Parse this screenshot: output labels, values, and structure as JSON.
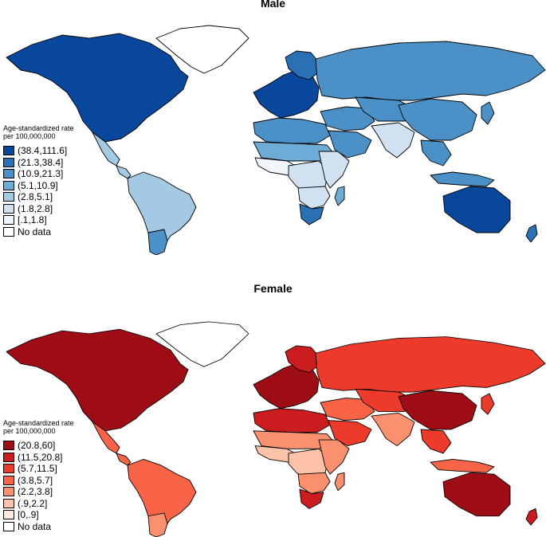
{
  "maps": [
    {
      "title": "Male",
      "legend_title": [
        "Age-standardized rate",
        "per 100,000,000"
      ],
      "colors": {
        "c1": "#08479c",
        "c2": "#2a70b4",
        "c3": "#4b91c7",
        "c4": "#6eacd6",
        "c5": "#a3c9e3",
        "c6": "#d0e1f2",
        "c7": "#f0f5fc",
        "nodata": "#ffffff"
      },
      "legend": [
        {
          "label": "(38.4,111.6]",
          "color": "#08479c"
        },
        {
          "label": "(21.3,38.4]",
          "color": "#2a70b4"
        },
        {
          "label": "(10.9,21.3]",
          "color": "#4b91c7"
        },
        {
          "label": "(5.1,10.9]",
          "color": "#6eacd6"
        },
        {
          "label": "(2.8,5.1]",
          "color": "#a3c9e3"
        },
        {
          "label": "(1.8,2.8]",
          "color": "#d0e1f2"
        },
        {
          "label": "[.1,1.8]",
          "color": "#f0f5fc"
        },
        {
          "label": "No data",
          "color": "#ffffff"
        }
      ]
    },
    {
      "title": "Female",
      "legend_title": [
        "Age-standardized rate",
        "per 100,000,000"
      ],
      "colors": {
        "c1": "#9e0d15",
        "c2": "#cb1d1f",
        "c3": "#ed3b2b",
        "c4": "#f76448",
        "c5": "#fb906e",
        "c6": "#fdc3a8",
        "c7": "#fde9df",
        "nodata": "#ffffff"
      },
      "legend": [
        {
          "label": "(20.8,60]",
          "color": "#9e0d15"
        },
        {
          "label": "(11.5,20.8]",
          "color": "#cb1d1f"
        },
        {
          "label": "(5.7,11.5]",
          "color": "#ed3b2b"
        },
        {
          "label": "(3.8,5.7]",
          "color": "#f76448"
        },
        {
          "label": "(2.2,3.8]",
          "color": "#fb906e"
        },
        {
          "label": "(.9,2.2]",
          "color": "#fdc3a8"
        },
        {
          "label": "[0,.9]",
          "color": "#fde9df"
        },
        {
          "label": "No data",
          "color": "#ffffff"
        }
      ]
    }
  ],
  "region_classes": {
    "male": {
      "north-america": "c1",
      "greenland": "nodata",
      "mexico": "c5",
      "central-america": "c5",
      "south-america": "c5",
      "argentina-chile": "c3",
      "europe-west": "c1",
      "scandinavia": "c2",
      "russia": "c3",
      "north-africa": "c3",
      "sahel": "c4",
      "west-africa": "c7",
      "central-africa": "c6",
      "east-africa": "c6",
      "southern-africa": "c6",
      "south-africa": "c2",
      "madagascar": "c4",
      "middle-east": "c3",
      "arabia": "c3",
      "central-asia": "c3",
      "china": "c3",
      "india": "c6",
      "southeast-asia": "c3",
      "indonesia": "c3",
      "japan": "c3",
      "australia": "c1",
      "new-zealand": "c2"
    },
    "female": {
      "north-america": "c1",
      "greenland": "nodata",
      "mexico": "c4",
      "central-america": "c4",
      "south-america": "c4",
      "argentina-chile": "c5",
      "europe-west": "c1",
      "scandinavia": "c2",
      "russia": "c3",
      "north-africa": "c2",
      "sahel": "c5",
      "west-africa": "c6",
      "central-africa": "c6",
      "east-africa": "c5",
      "southern-africa": "c5",
      "south-africa": "c2",
      "madagascar": "c5",
      "middle-east": "c4",
      "arabia": "c3",
      "central-asia": "c3",
      "china": "c1",
      "india": "c5",
      "southeast-asia": "c3",
      "indonesia": "c4",
      "japan": "c3",
      "australia": "c1",
      "new-zealand": "c2"
    }
  }
}
